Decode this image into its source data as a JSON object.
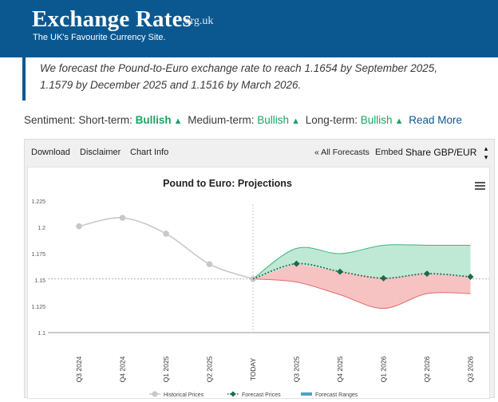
{
  "header": {
    "brand": "Exchange Rates",
    "brand_tld": ".org.uk",
    "tagline": "The UK's Favourite Currency Site."
  },
  "forecast_quote": "We forecast the Pound-to-Euro exchange rate to reach 1.1654 by September 2025, 1.1579 by December 2025 and 1.1516 by March 2026.",
  "sentiment": {
    "label": "Sentiment:",
    "short_label": "Short-term:",
    "short_value": "Bullish",
    "medium_label": "Medium-term:",
    "medium_value": "Bullish",
    "long_label": "Long-term:",
    "long_value": "Bullish",
    "trend_icon": "triangle-up",
    "read_more": "Read More",
    "bull_color": "#1aa463"
  },
  "toolbar": {
    "download": "Download",
    "disclaimer": "Disclaimer",
    "chart_info": "Chart Info",
    "all_forecasts": "« All Forecasts",
    "embed": "Embed",
    "share": "Share",
    "pair": "GBP/EUR"
  },
  "menu_icon": "hamburger-icon",
  "chart_data": {
    "type": "line",
    "title": "Pound to Euro: Projections",
    "categories": [
      "Q3 2024",
      "Q4 2024",
      "Q1 2025",
      "Q2 2025",
      "TODAY",
      "Q3 2025",
      "Q4 2025",
      "Q1 2026",
      "Q2 2026",
      "Q3 2026"
    ],
    "y_ticks": [
      "1.225",
      "1.2",
      "1.175",
      "1.15",
      "1.125",
      "1.1"
    ],
    "ylim": [
      1.1,
      1.225
    ],
    "reference_line": 1.151,
    "series": [
      {
        "name": "Historical Prices",
        "color": "#c8c8c8",
        "values": [
          1.201,
          1.209,
          1.194,
          1.165,
          1.151,
          null,
          null,
          null,
          null,
          null
        ]
      },
      {
        "name": "Forecast Prices",
        "color": "#1a6b4a",
        "values": [
          null,
          null,
          null,
          null,
          1.151,
          1.1654,
          1.1579,
          1.1516,
          1.156,
          1.153
        ]
      },
      {
        "name": "Forecast Ranges",
        "color": "#4aa3c8",
        "upper": [
          null,
          null,
          null,
          null,
          1.151,
          1.18,
          1.175,
          1.183,
          1.183,
          1.183
        ],
        "lower": [
          null,
          null,
          null,
          null,
          1.151,
          1.148,
          1.136,
          1.123,
          1.137,
          1.137
        ]
      }
    ],
    "grid": false,
    "legend_position": "bottom"
  }
}
